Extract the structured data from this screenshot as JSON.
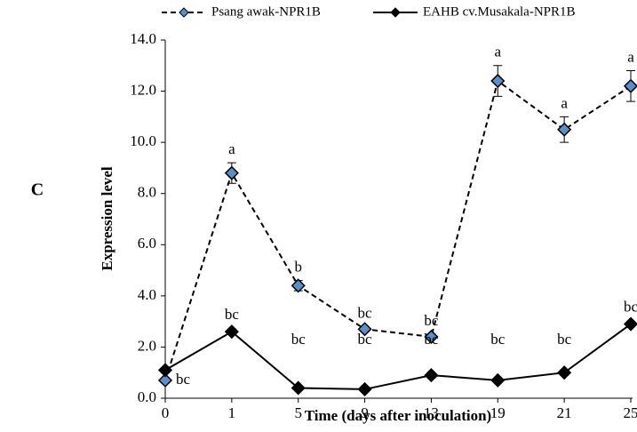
{
  "panel_label": "C",
  "chart_data": {
    "type": "line",
    "x_label": "Time (days after inoculation)",
    "y_label": "Expression level",
    "categories": [
      "0",
      "1",
      "5",
      "9",
      "13",
      "19",
      "21",
      "25"
    ],
    "ylim": [
      0,
      14
    ],
    "yticks": [
      {
        "value": 0,
        "label": "0.0"
      },
      {
        "value": 2,
        "label": "2.0"
      },
      {
        "value": 4,
        "label": "4.0"
      },
      {
        "value": 6,
        "label": "6.0"
      },
      {
        "value": 8,
        "label": "8.0"
      },
      {
        "value": 10,
        "label": "10.0"
      },
      {
        "value": 12,
        "label": "12.0"
      },
      {
        "value": 14,
        "label": "14.0"
      }
    ],
    "grid": false,
    "series": [
      {
        "name": "Psang awak-NPR1B",
        "color": "#5b8fc9",
        "dashed": true,
        "values": [
          0.7,
          8.8,
          4.4,
          2.7,
          2.4,
          12.4,
          10.5,
          12.2
        ],
        "errors": [
          0.1,
          0.4,
          0.2,
          0.1,
          0.1,
          0.6,
          0.5,
          0.6
        ],
        "labels": [
          "bc",
          "a",
          "b",
          "bc",
          "bc",
          "a",
          "a",
          "a"
        ]
      },
      {
        "name": "EAHB cv.Musakala-NPR1B",
        "color": "#000000",
        "dashed": false,
        "values": [
          1.1,
          2.6,
          0.4,
          0.35,
          0.9,
          0.7,
          1.0,
          2.9
        ],
        "errors": [
          0.1,
          0.1,
          0.05,
          0.05,
          0.1,
          0.05,
          0.1,
          0.1
        ],
        "labels": [
          null,
          "bc",
          "bc",
          "bc",
          "bc",
          "bc",
          "bc",
          "bc"
        ]
      }
    ]
  }
}
